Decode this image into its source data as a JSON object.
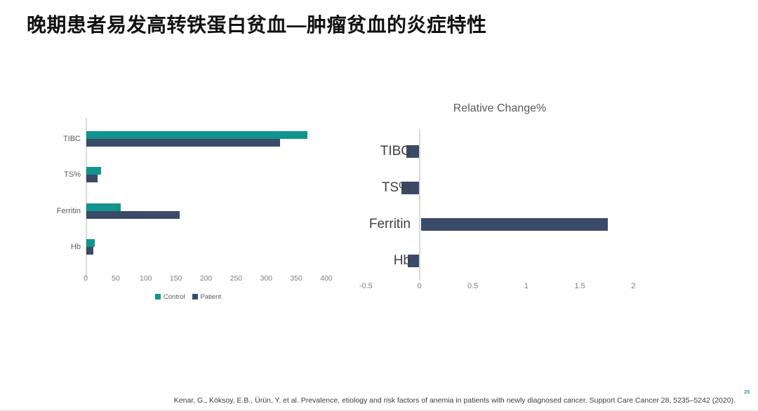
{
  "title": "晚期患者易发高转铁蛋白贫血—肿瘤贫血的炎症特性",
  "citation": "Kenar, G., Köksoy, E.B., Ürün, Y. et al. Prevalence, etiology and risk factors of anemia in patients with newly diagnosed cancer. Support Care Cancer 28, 5235–5242 (2020).",
  "page_number": "25",
  "colors": {
    "control": "#11948d",
    "patient": "#3a4a68",
    "axis_line": "#d9d9d9",
    "tick_text": "#7f7f7f",
    "page_number": "#2e9e97"
  },
  "chart_data": [
    {
      "type": "bar",
      "orientation": "horizontal",
      "title": "",
      "categories": [
        "TIBC",
        "TS%",
        "Ferritin",
        "Hb"
      ],
      "series": [
        {
          "name": "Control",
          "color_key": "control",
          "values": [
            367,
            24,
            57,
            14
          ]
        },
        {
          "name": "Patient",
          "color_key": "patient",
          "values": [
            322,
            19,
            155,
            12
          ]
        }
      ],
      "xlim": [
        0,
        400
      ],
      "xticks": [
        0,
        50,
        100,
        150,
        200,
        250,
        300,
        350,
        400
      ],
      "legend_position": "bottom",
      "grid": false
    },
    {
      "type": "bar",
      "orientation": "horizontal",
      "title": "Relative Change%",
      "categories": [
        "TIBC",
        "TS%",
        "Ferritin",
        "Hb"
      ],
      "values": [
        -0.12,
        -0.17,
        1.75,
        -0.11
      ],
      "color_key": "patient",
      "xlim": [
        -0.5,
        2
      ],
      "xticks": [
        -0.5,
        0,
        0.5,
        1,
        1.5,
        2
      ],
      "legend_position": "none",
      "grid": false
    }
  ]
}
